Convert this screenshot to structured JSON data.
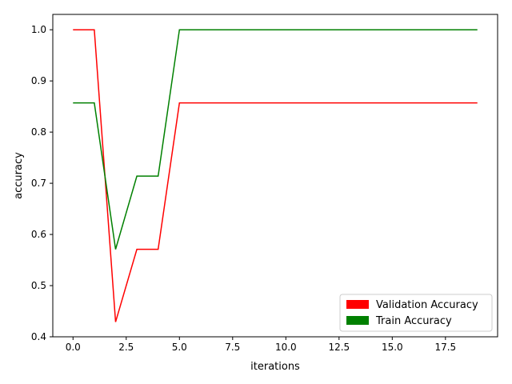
{
  "chart_data": {
    "type": "line",
    "title": "",
    "xlabel": "iterations",
    "ylabel": "accuracy",
    "xlim": [
      -0.95,
      19.95
    ],
    "ylim": [
      0.4,
      1.03
    ],
    "x_ticks": [
      0,
      2.5,
      5,
      7.5,
      10,
      12.5,
      15,
      17.5
    ],
    "x_tick_labels": [
      "0.0",
      "2.5",
      "5.0",
      "7.5",
      "10.0",
      "12.5",
      "15.0",
      "17.5"
    ],
    "y_ticks": [
      0.4,
      0.5,
      0.6,
      0.7,
      0.8,
      0.9,
      1.0
    ],
    "y_tick_labels": [
      "0.4",
      "0.5",
      "0.6",
      "0.7",
      "0.8",
      "0.9",
      "1.0"
    ],
    "grid": false,
    "legend_position": "lower-right",
    "x": [
      0,
      1,
      2,
      3,
      4,
      5,
      6,
      7,
      8,
      9,
      10,
      11,
      12,
      13,
      14,
      15,
      16,
      17,
      18,
      19
    ],
    "series": [
      {
        "name": "Validation Accuracy",
        "color": "#ff0000",
        "values": [
          1.0,
          1.0,
          0.429,
          0.571,
          0.571,
          0.857,
          0.857,
          0.857,
          0.857,
          0.857,
          0.857,
          0.857,
          0.857,
          0.857,
          0.857,
          0.857,
          0.857,
          0.857,
          0.857,
          0.857
        ]
      },
      {
        "name": "Train Accuracy",
        "color": "#008000",
        "values": [
          0.857,
          0.857,
          0.571,
          0.714,
          0.714,
          1.0,
          1.0,
          1.0,
          1.0,
          1.0,
          1.0,
          1.0,
          1.0,
          1.0,
          1.0,
          1.0,
          1.0,
          1.0,
          1.0,
          1.0
        ]
      }
    ]
  }
}
